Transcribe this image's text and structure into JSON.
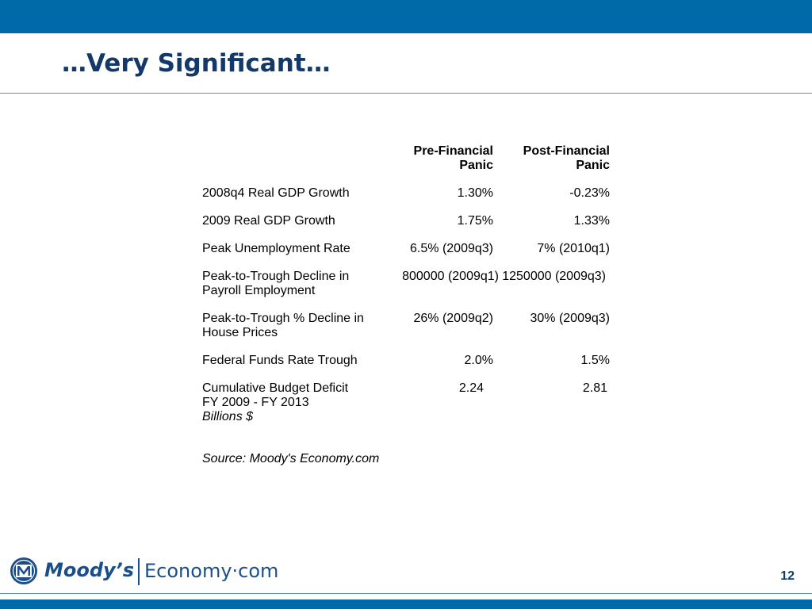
{
  "title": "…Very Significant…",
  "table": {
    "headers": {
      "col1_line1": "Pre-Financial",
      "col1_line2": "Panic",
      "col2_line1": "Post-Financial",
      "col2_line2": "Panic"
    },
    "rows": [
      {
        "label_line1": "2008q4 Real GDP Growth",
        "label_line2": "",
        "pre": "1.30%",
        "post": "-0.23%"
      },
      {
        "label_line1": "2009 Real GDP Growth",
        "label_line2": "",
        "pre": "1.75%",
        "post": "1.33%"
      },
      {
        "label_line1": "Peak Unemployment Rate",
        "label_line2": "",
        "pre": "6.5% (2009q3)",
        "post": "7% (2010q1)"
      },
      {
        "label_line1": "Peak-to-Trough Decline in",
        "label_line2": "Payroll Employment",
        "pre": "800000 (2009q1)",
        "post": "1250000 (2009q3)"
      },
      {
        "label_line1": "Peak-to-Trough % Decline in",
        "label_line2": "House Prices",
        "pre": "26% (2009q2)",
        "post": "30% (2009q3)"
      },
      {
        "label_line1": "Federal Funds Rate Trough",
        "label_line2": "",
        "pre": "2.0%",
        "post": "1.5%"
      },
      {
        "label_line1": "Cumulative Budget Deficit",
        "label_line2": "FY 2009 - FY 2013",
        "label_line3": "Billions $",
        "pre": "2.24",
        "post": "2.81"
      }
    ],
    "source": "Source: Moody's Economy.com"
  },
  "logo": {
    "name_part1": "Moody’s",
    "name_part2": "Economy·com",
    "emblem_icon": "moodys-m-emblem-icon",
    "brand_color": "#1b4f8a"
  },
  "page_number": "12",
  "colors": {
    "bar": "#0069a8",
    "title": "#13396b"
  }
}
